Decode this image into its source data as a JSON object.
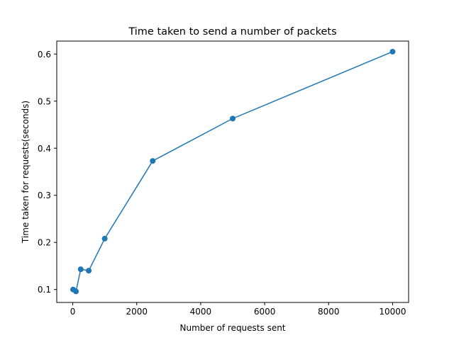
{
  "chart_data": {
    "type": "line",
    "title": "Time taken to send a number of packets",
    "xlabel": "Number of requests sent",
    "ylabel": "Time taken for requests(seconds)",
    "xlim": [
      -500,
      10500
    ],
    "ylim": [
      0.0725,
      0.6275
    ],
    "x_ticks": [
      0,
      2000,
      4000,
      6000,
      8000,
      10000
    ],
    "y_ticks": [
      0.1,
      0.2,
      0.3,
      0.4,
      0.5,
      0.6
    ],
    "x_tick_labels": [
      "0",
      "2000",
      "4000",
      "6000",
      "8000",
      "10000"
    ],
    "y_tick_labels": [
      "0.1",
      "0.2",
      "0.3",
      "0.4",
      "0.5",
      "0.6"
    ],
    "grid": false,
    "legend": "none",
    "color": "#1f77b4",
    "marker": "circle",
    "series": [
      {
        "x": [
          10,
          100,
          250,
          500,
          1000,
          2500,
          5000,
          10000
        ],
        "y": [
          0.1,
          0.096,
          0.143,
          0.14,
          0.208,
          0.373,
          0.463,
          0.605
        ]
      }
    ]
  }
}
